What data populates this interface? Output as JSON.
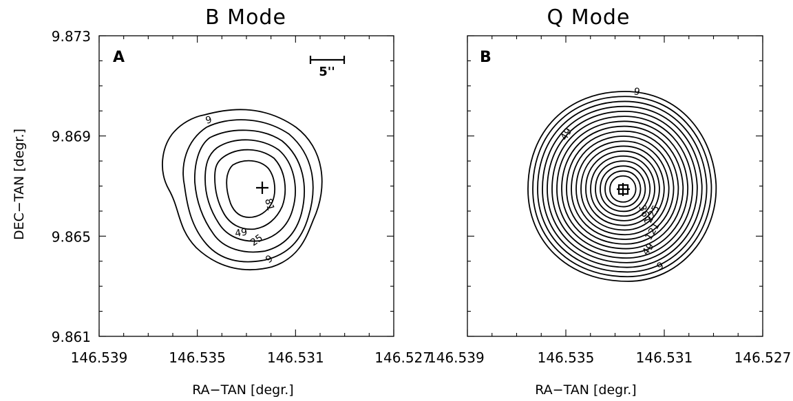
{
  "chart_data": [
    {
      "type": "contour",
      "panel": "A",
      "title": "B Mode",
      "xlabel": "RA−TAN [degr.]",
      "ylabel": "DEC−TAN [degr.]",
      "xlim": [
        146.539,
        146.527
      ],
      "ylim": [
        9.861,
        9.873
      ],
      "xticks": [
        146.539,
        146.535,
        146.531,
        146.527
      ],
      "xticklabels": [
        "146.539",
        "146.535",
        "146.531",
        "146.527"
      ],
      "yticks": [
        9.861,
        9.865,
        9.869,
        9.873
      ],
      "yticklabels": [
        "9.861",
        "9.865",
        "9.869",
        "9.873"
      ],
      "peak": {
        "x": 146.5325,
        "y": 9.8672
      },
      "contour_levels": [
        9,
        25,
        49,
        81
      ],
      "contour_labels": [
        "9",
        "25",
        "49",
        "81",
        "9"
      ],
      "scale_bar": {
        "label": "5''"
      }
    },
    {
      "type": "contour",
      "panel": "B",
      "title": "Q Mode",
      "xlabel": "RA−TAN [degr.]",
      "ylabel": "",
      "xlim": [
        146.539,
        146.527
      ],
      "ylim": [
        9.861,
        9.873
      ],
      "xticks": [
        146.539,
        146.535,
        146.531,
        146.527
      ],
      "xticklabels": [
        "146.539",
        "146.535",
        "146.531",
        "146.527"
      ],
      "yticks": [
        9.861,
        9.865,
        9.869,
        9.873
      ],
      "yticklabels": [],
      "peak": {
        "x": 146.5322,
        "y": 9.8671
      },
      "contour_levels": [
        9,
        49,
        121,
        225,
        361
      ],
      "contour_labels": [
        "9",
        "49",
        "361",
        "225",
        "121",
        "49",
        "9"
      ]
    }
  ]
}
